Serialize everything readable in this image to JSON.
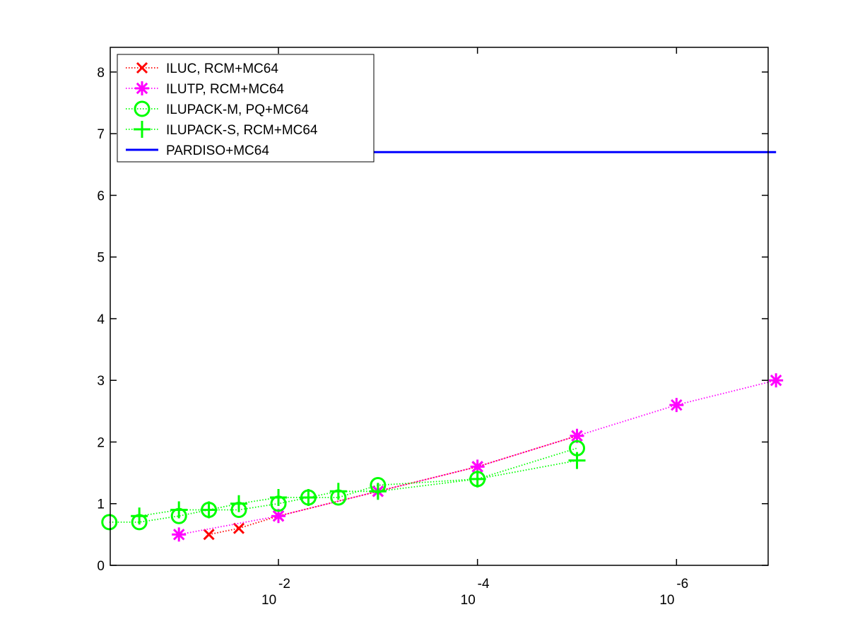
{
  "chart_data": {
    "type": "line",
    "title": "",
    "xlabel": "",
    "ylabel": "",
    "x_scale": "log",
    "x_reversed": true,
    "xlim": [
      0.49,
      1.2e-07
    ],
    "ylim": [
      0,
      8.4
    ],
    "grid": false,
    "legend_position": "top-left",
    "x_ticks": [
      {
        "value": 0.01,
        "base": "10",
        "exp": "-2"
      },
      {
        "value": 0.0001,
        "base": "10",
        "exp": "-4"
      },
      {
        "value": 1e-06,
        "base": "10",
        "exp": "-6"
      }
    ],
    "y_ticks": [
      {
        "value": 0,
        "label": "0"
      },
      {
        "value": 1,
        "label": "1"
      },
      {
        "value": 2,
        "label": "2"
      },
      {
        "value": 3,
        "label": "3"
      },
      {
        "value": 4,
        "label": "4"
      },
      {
        "value": 5,
        "label": "5"
      },
      {
        "value": 6,
        "label": "6"
      },
      {
        "value": 7,
        "label": "7"
      },
      {
        "value": 8,
        "label": "8"
      }
    ],
    "series": [
      {
        "name": "ILUC, RCM+MC64",
        "color": "#ff0000",
        "marker": "x-mark",
        "line": "dotted",
        "points": [
          [
            0.05,
            0.5
          ],
          [
            0.025,
            0.6
          ],
          [
            0.01,
            0.8
          ],
          [
            0.001,
            1.2
          ],
          [
            0.0001,
            1.6
          ],
          [
            1e-05,
            2.1
          ]
        ]
      },
      {
        "name": "ILUTP, RCM+MC64",
        "color": "#ff00ff",
        "marker": "star",
        "line": "dotted",
        "points": [
          [
            0.1,
            0.5
          ],
          [
            0.01,
            0.8
          ],
          [
            0.001,
            1.2
          ],
          [
            0.0001,
            1.6
          ],
          [
            1e-05,
            2.1
          ],
          [
            1e-06,
            2.6
          ],
          [
            1e-07,
            3.0
          ]
        ]
      },
      {
        "name": "ILUPACK-M, PQ+MC64",
        "color": "#00ff00",
        "marker": "circle",
        "line": "dotted",
        "points": [
          [
            0.5,
            0.7
          ],
          [
            0.25,
            0.7
          ],
          [
            0.1,
            0.8
          ],
          [
            0.05,
            0.9
          ],
          [
            0.025,
            0.9
          ],
          [
            0.01,
            1.0
          ],
          [
            0.005,
            1.1
          ],
          [
            0.0025,
            1.1
          ],
          [
            0.001,
            1.3
          ],
          [
            0.0001,
            1.4
          ],
          [
            1e-05,
            1.9
          ]
        ]
      },
      {
        "name": "ILUPACK-S, RCM+MC64",
        "color": "#00ff00",
        "marker": "plus",
        "line": "dotted",
        "points": [
          [
            0.25,
            0.8
          ],
          [
            0.1,
            0.9
          ],
          [
            0.05,
            0.9
          ],
          [
            0.025,
            1.0
          ],
          [
            0.01,
            1.1
          ],
          [
            0.005,
            1.1
          ],
          [
            0.0025,
            1.2
          ],
          [
            0.001,
            1.2
          ],
          [
            0.0001,
            1.4
          ],
          [
            1e-05,
            1.7
          ]
        ]
      },
      {
        "name": "PARDISO+MC64",
        "color": "#0000ff",
        "marker": "none",
        "line": "solid",
        "points": [
          [
            0.003,
            6.7
          ],
          [
            1e-07,
            6.7
          ]
        ]
      }
    ]
  }
}
